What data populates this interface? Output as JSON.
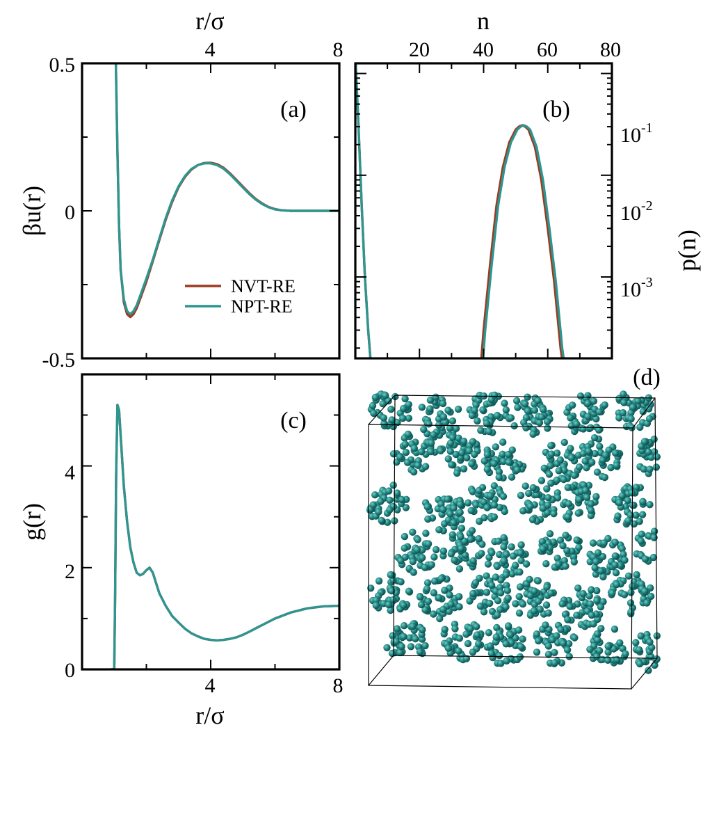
{
  "colors": {
    "nvt": "#9c3a1f",
    "npt": "#2e9590",
    "sphere": "#1f7f7c"
  },
  "chart_data": [
    {
      "id": "a",
      "type": "line",
      "panel_label": "(a)",
      "xlabel": "r/σ",
      "ylabel": "βu(r)",
      "xlim": [
        0,
        8
      ],
      "ylim": [
        -0.5,
        0.5
      ],
      "xticks": [
        "4",
        "8"
      ],
      "yticks": [
        "0.5",
        "0",
        "-0.5"
      ],
      "legend": {
        "position": "lower-center",
        "entries": [
          "NVT-RE",
          "NPT-RE"
        ]
      },
      "series": [
        {
          "name": "NVT-RE",
          "x": [
            1.05,
            1.1,
            1.15,
            1.2,
            1.3,
            1.4,
            1.5,
            1.6,
            1.7,
            1.8,
            2.0,
            2.2,
            2.4,
            2.6,
            2.8,
            3.0,
            3.2,
            3.4,
            3.6,
            3.8,
            4.0,
            4.2,
            4.4,
            4.6,
            4.8,
            5.0,
            5.2,
            5.4,
            5.6,
            5.8,
            6.0,
            6.2,
            6.5,
            7.0,
            7.5,
            8.0
          ],
          "y": [
            0.5,
            0.2,
            -0.05,
            -0.2,
            -0.31,
            -0.35,
            -0.36,
            -0.35,
            -0.33,
            -0.3,
            -0.24,
            -0.17,
            -0.1,
            -0.03,
            0.03,
            0.08,
            0.115,
            0.14,
            0.155,
            0.162,
            0.163,
            0.158,
            0.146,
            0.127,
            0.105,
            0.082,
            0.06,
            0.04,
            0.025,
            0.013,
            0.006,
            0.002,
            0.0,
            0.0,
            0.0,
            0.0
          ]
        },
        {
          "name": "NPT-RE",
          "x": [
            1.05,
            1.1,
            1.15,
            1.2,
            1.3,
            1.4,
            1.5,
            1.6,
            1.7,
            1.8,
            2.0,
            2.2,
            2.4,
            2.6,
            2.8,
            3.0,
            3.2,
            3.4,
            3.6,
            3.8,
            4.0,
            4.2,
            4.4,
            4.6,
            4.8,
            5.0,
            5.2,
            5.4,
            5.6,
            5.8,
            6.0,
            6.2,
            6.5,
            7.0,
            7.5,
            8.0
          ],
          "y": [
            0.5,
            0.2,
            -0.05,
            -0.2,
            -0.3,
            -0.34,
            -0.35,
            -0.34,
            -0.32,
            -0.29,
            -0.23,
            -0.165,
            -0.095,
            -0.025,
            0.035,
            0.083,
            0.118,
            0.142,
            0.155,
            0.161,
            0.161,
            0.155,
            0.143,
            0.124,
            0.102,
            0.079,
            0.057,
            0.038,
            0.023,
            0.012,
            0.005,
            0.002,
            0.0,
            0.0,
            0.0,
            0.0
          ]
        }
      ]
    },
    {
      "id": "b",
      "type": "line",
      "panel_label": "(b)",
      "xlabel": "n",
      "ylabel": "p(n)",
      "xlim": [
        0,
        80
      ],
      "yscale": "log",
      "ylim_log10": [
        -3.8,
        -0.9
      ],
      "xticks": [
        "20",
        "40",
        "60",
        "80"
      ],
      "yticks": [
        "10-1",
        "10-2",
        "10-3"
      ],
      "series": [
        {
          "name": "NVT-RE",
          "x": [
            0,
            1,
            2,
            3,
            4,
            5,
            39,
            40,
            42,
            44,
            46,
            48,
            50,
            51,
            52,
            53,
            54,
            56,
            58,
            60,
            62,
            64,
            65,
            66
          ],
          "y": [
            0.15,
            0.03,
            0.005,
            0.001,
            0.0003,
            0.00012,
            0.00012,
            0.0003,
            0.0013,
            0.005,
            0.012,
            0.021,
            0.028,
            0.03,
            0.031,
            0.03,
            0.028,
            0.019,
            0.009,
            0.003,
            0.0009,
            0.0002,
            0.00012,
            0.0001
          ]
        },
        {
          "name": "NPT-RE",
          "x": [
            0,
            1,
            2,
            3,
            4,
            5,
            39.5,
            40.5,
            42.5,
            44.5,
            46.5,
            48.5,
            50.5,
            51.5,
            52.5,
            53.5,
            54.5,
            56.5,
            58.5,
            60.5,
            62.5,
            64.5,
            65.5,
            66.5
          ],
          "y": [
            0.15,
            0.03,
            0.005,
            0.001,
            0.0003,
            0.00012,
            0.00012,
            0.0003,
            0.0013,
            0.005,
            0.012,
            0.021,
            0.028,
            0.03,
            0.031,
            0.03,
            0.028,
            0.019,
            0.009,
            0.003,
            0.0009,
            0.0002,
            0.00012,
            0.0001
          ]
        }
      ]
    },
    {
      "id": "c",
      "type": "line",
      "panel_label": "(c)",
      "xlabel": "r/σ",
      "ylabel": "g(r)",
      "xlim": [
        0,
        8
      ],
      "ylim": [
        0,
        5.8
      ],
      "xticks": [
        "4",
        "8"
      ],
      "yticks": [
        "0",
        "2",
        "4"
      ],
      "series": [
        {
          "name": "NVT-RE",
          "x": [
            0.9,
            1.0,
            1.03,
            1.06,
            1.1,
            1.15,
            1.2,
            1.3,
            1.4,
            1.5,
            1.6,
            1.7,
            1.8,
            1.9,
            2.0,
            2.1,
            2.2,
            2.3,
            2.4,
            2.6,
            2.8,
            3.0,
            3.2,
            3.4,
            3.6,
            3.8,
            4.0,
            4.2,
            4.4,
            4.6,
            4.8,
            5.0,
            5.2,
            5.5,
            6.0,
            6.5,
            7.0,
            7.5,
            8.0
          ],
          "y": [
            0.0,
            0.0,
            1.5,
            3.8,
            5.2,
            5.1,
            4.6,
            3.6,
            2.9,
            2.4,
            2.1,
            1.9,
            1.85,
            1.88,
            1.95,
            2.0,
            1.9,
            1.7,
            1.5,
            1.25,
            1.05,
            0.92,
            0.8,
            0.71,
            0.65,
            0.6,
            0.58,
            0.57,
            0.58,
            0.6,
            0.63,
            0.68,
            0.74,
            0.84,
            1.0,
            1.12,
            1.2,
            1.24,
            1.25
          ]
        },
        {
          "name": "NPT-RE",
          "x": [
            0.9,
            1.0,
            1.03,
            1.06,
            1.1,
            1.15,
            1.2,
            1.3,
            1.4,
            1.5,
            1.6,
            1.7,
            1.8,
            1.9,
            2.0,
            2.1,
            2.2,
            2.3,
            2.4,
            2.6,
            2.8,
            3.0,
            3.2,
            3.4,
            3.6,
            3.8,
            4.0,
            4.2,
            4.4,
            4.6,
            4.8,
            5.0,
            5.2,
            5.5,
            6.0,
            6.5,
            7.0,
            7.5,
            8.0
          ],
          "y": [
            0.0,
            0.0,
            1.5,
            3.8,
            5.2,
            5.1,
            4.6,
            3.6,
            2.9,
            2.4,
            2.1,
            1.9,
            1.85,
            1.88,
            1.95,
            2.0,
            1.9,
            1.7,
            1.5,
            1.25,
            1.05,
            0.92,
            0.8,
            0.71,
            0.65,
            0.6,
            0.58,
            0.57,
            0.58,
            0.6,
            0.63,
            0.68,
            0.74,
            0.84,
            1.0,
            1.12,
            1.2,
            1.24,
            1.25
          ]
        }
      ]
    }
  ],
  "snapshot": {
    "panel_label": "(d)"
  }
}
